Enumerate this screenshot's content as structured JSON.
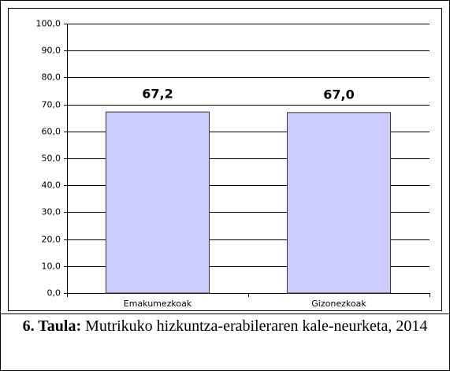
{
  "chart_data": {
    "type": "bar",
    "categories": [
      "Emakumezkoak",
      "Gizonezkoak"
    ],
    "values": [
      67.2,
      67.0
    ],
    "value_labels": [
      "67,2",
      "67,0"
    ],
    "color": "#ccccff",
    "ylim": [
      0,
      100
    ],
    "yticks": [
      {
        "value": 0,
        "label": "0,0"
      },
      {
        "value": 10,
        "label": "10,0"
      },
      {
        "value": 20,
        "label": "20,0"
      },
      {
        "value": 30,
        "label": "30,0"
      },
      {
        "value": 40,
        "label": "40,0"
      },
      {
        "value": 50,
        "label": "50,0"
      },
      {
        "value": 60,
        "label": "60,0"
      },
      {
        "value": 70,
        "label": "70,0"
      },
      {
        "value": 80,
        "label": "80,0"
      },
      {
        "value": 90,
        "label": "90,0"
      },
      {
        "value": 100,
        "label": "100,0"
      }
    ],
    "grid": true
  },
  "caption": {
    "label": "6. Taula:",
    "text": "Mutrikuko hizkuntza-erabileraren kale-neurketa, 2014"
  }
}
